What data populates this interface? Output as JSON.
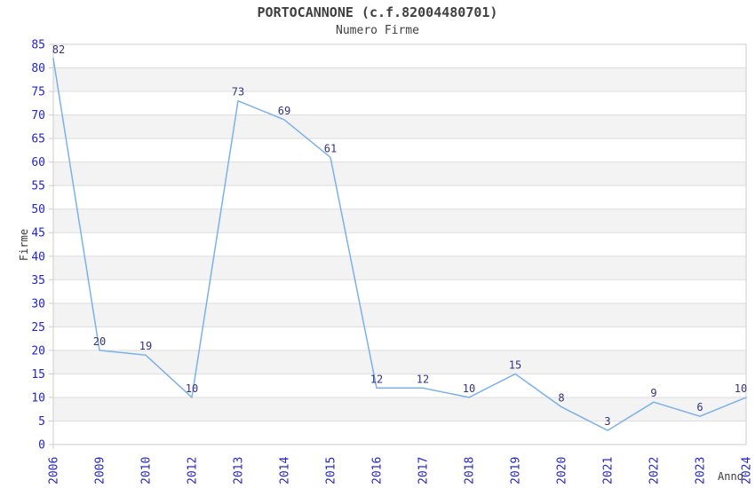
{
  "chart_data": {
    "type": "line",
    "title": "PORTOCANNONE (c.f.82004480701)",
    "subtitle": "Numero Firme",
    "xlabel": "Anno",
    "ylabel": "Firme",
    "categories": [
      "2006",
      "2009",
      "2010",
      "2012",
      "2013",
      "2014",
      "2015",
      "2016",
      "2017",
      "2018",
      "2019",
      "2020",
      "2021",
      "2022",
      "2023",
      "2024"
    ],
    "values": [
      82,
      20,
      19,
      10,
      73,
      69,
      61,
      12,
      12,
      10,
      15,
      8,
      3,
      9,
      6,
      10
    ],
    "ylim": [
      0,
      85
    ],
    "ytick_step": 5,
    "grid": "horizontal",
    "banded_background": true,
    "legend": "none",
    "data_labels_visible": true,
    "colors": {
      "line": "#7cb1e8",
      "data_label": "#333380",
      "tick_label": "#2424cc",
      "band": "#f3f3f3",
      "gridline": "#dddddd",
      "axis_border": "#cccccc",
      "title_text": "#3f3f3f"
    }
  }
}
